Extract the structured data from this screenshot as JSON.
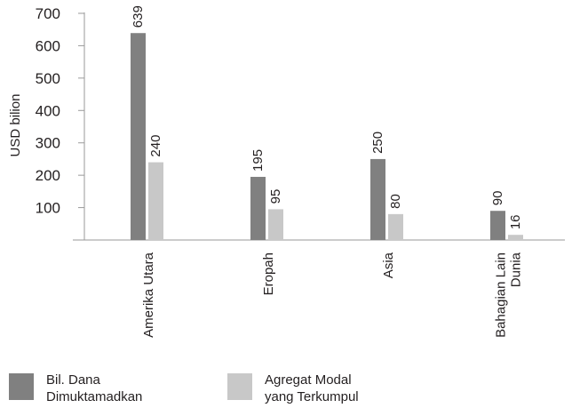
{
  "chart_data": {
    "type": "bar",
    "ylabel": "USD bilion",
    "ylim": [
      0,
      700
    ],
    "yticks": [
      100,
      200,
      300,
      400,
      500,
      600,
      700
    ],
    "categories": [
      "Amerika Utara",
      "Eropah",
      "Asia",
      "Bahagian Lain\nDunia"
    ],
    "series": [
      {
        "name": "Bil. Dana\nDimuktamadkan",
        "color": "#808080",
        "values": [
          639,
          195,
          250,
          90
        ]
      },
      {
        "name": "Agregat Modal\nyang Terkumpul",
        "color": "#c8c8c8",
        "values": [
          240,
          95,
          80,
          16
        ]
      }
    ],
    "grid": false,
    "legend_position": "bottom"
  }
}
